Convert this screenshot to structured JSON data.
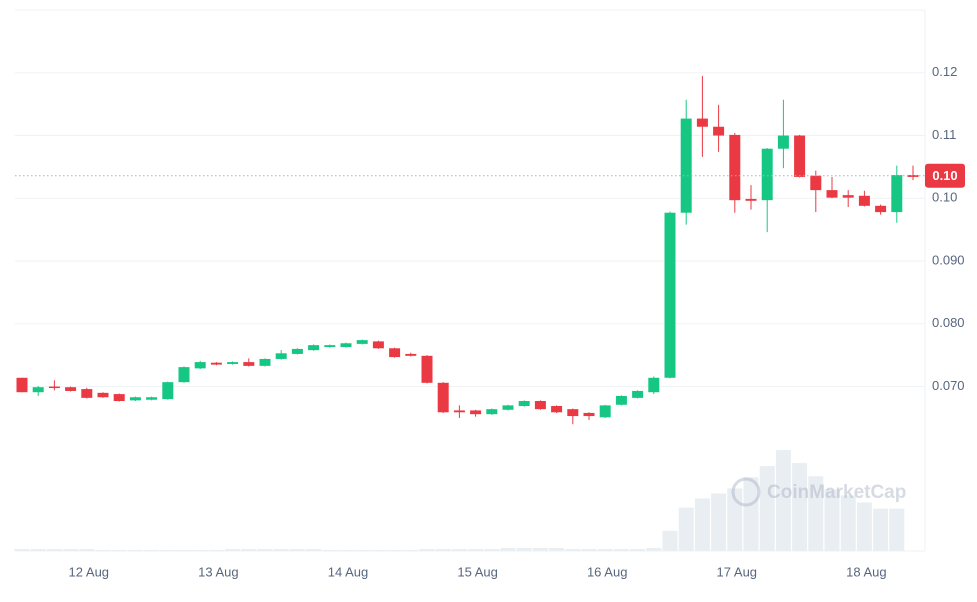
{
  "chart_data": {
    "type": "candlestick",
    "watermark": "CoinMarketCap",
    "categories": [
      null,
      null,
      null,
      null,
      "12 Aug",
      null,
      null,
      null,
      null,
      null,
      null,
      null,
      "13 Aug",
      null,
      null,
      null,
      null,
      null,
      null,
      null,
      "14 Aug",
      null,
      null,
      null,
      null,
      null,
      null,
      null,
      "15 Aug",
      null,
      null,
      null,
      null,
      null,
      null,
      null,
      "16 Aug",
      null,
      null,
      null,
      null,
      null,
      null,
      null,
      "17 Aug",
      null,
      null,
      null,
      null,
      null,
      null,
      null,
      "18 Aug",
      null,
      null,
      null
    ],
    "open": [
      0.0714,
      0.0691,
      0.07,
      0.0699,
      0.0696,
      0.069,
      0.0688,
      0.0678,
      0.0679,
      0.068,
      0.0707,
      0.0729,
      0.0738,
      0.0736,
      0.0739,
      0.0733,
      0.0744,
      0.0752,
      0.0758,
      0.0763,
      0.0763,
      0.0768,
      0.0772,
      0.0761,
      0.0752,
      0.0749,
      0.0706,
      0.0662,
      0.0662,
      0.0656,
      0.0663,
      0.0669,
      0.0677,
      0.0669,
      0.0664,
      0.0658,
      0.0651,
      0.0671,
      0.0682,
      0.0691,
      0.0714,
      0.0977,
      0.1127,
      0.1114,
      0.1101,
      0.0999,
      0.0997,
      0.1079,
      0.11,
      0.1036,
      0.1013,
      0.1005,
      0.1004,
      0.0988,
      0.0978,
      0.1037
    ],
    "high": [
      0.0714,
      0.0701,
      0.071,
      0.07,
      0.0698,
      0.0691,
      0.0689,
      0.0684,
      0.0684,
      0.0708,
      0.0732,
      0.0741,
      0.0739,
      0.074,
      0.0745,
      0.0745,
      0.0758,
      0.0761,
      0.0767,
      0.0767,
      0.077,
      0.0775,
      0.0773,
      0.0762,
      0.0754,
      0.075,
      0.0707,
      0.067,
      0.0663,
      0.0665,
      0.0671,
      0.0678,
      0.0678,
      0.067,
      0.0665,
      0.0659,
      0.0671,
      0.0686,
      0.0694,
      0.0716,
      0.0979,
      0.1157,
      0.1195,
      0.1149,
      0.1104,
      0.1021,
      0.108,
      0.1157,
      0.1101,
      0.1044,
      0.1034,
      0.1013,
      0.1012,
      0.099,
      0.1052,
      0.1052
    ],
    "low": [
      0.0691,
      0.0685,
      0.0694,
      0.0692,
      0.0681,
      0.0682,
      0.0676,
      0.0677,
      0.0678,
      0.0679,
      0.0706,
      0.0728,
      0.0734,
      0.0735,
      0.0732,
      0.0732,
      0.0743,
      0.0751,
      0.0757,
      0.0762,
      0.0762,
      0.0767,
      0.076,
      0.0746,
      0.0748,
      0.0705,
      0.0658,
      0.065,
      0.0652,
      0.0655,
      0.0662,
      0.0668,
      0.0663,
      0.0658,
      0.064,
      0.0647,
      0.065,
      0.067,
      0.0681,
      0.0688,
      0.0713,
      0.0958,
      0.1066,
      0.1074,
      0.0977,
      0.0982,
      0.0946,
      0.1048,
      0.1033,
      0.0978,
      0.1,
      0.0986,
      0.0987,
      0.0974,
      0.0961,
      0.1029
    ],
    "close": [
      0.0691,
      0.0699,
      0.0699,
      0.0693,
      0.0682,
      0.0683,
      0.0677,
      0.0683,
      0.0683,
      0.0707,
      0.0731,
      0.0739,
      0.0735,
      0.0739,
      0.0733,
      0.0744,
      0.0753,
      0.076,
      0.0766,
      0.0766,
      0.0769,
      0.0774,
      0.0761,
      0.0747,
      0.0749,
      0.0706,
      0.0659,
      0.0659,
      0.0656,
      0.0664,
      0.067,
      0.0677,
      0.0664,
      0.0659,
      0.0653,
      0.0653,
      0.067,
      0.0685,
      0.0693,
      0.0714,
      0.0977,
      0.1127,
      0.1114,
      0.11,
      0.0997,
      0.0996,
      0.1079,
      0.11,
      0.1034,
      0.1013,
      0.1001,
      0.1001,
      0.0988,
      0.0978,
      0.1037,
      0.1034
    ],
    "volume": [
      2,
      2,
      2,
      2,
      2,
      1,
      1,
      1,
      1,
      1,
      1,
      1,
      1,
      2,
      2,
      2,
      2,
      2,
      2,
      1,
      1,
      1,
      1,
      1,
      1,
      2,
      2,
      2,
      2,
      2,
      3,
      3,
      3,
      3,
      2,
      2,
      2,
      2,
      2,
      3,
      20,
      43,
      52,
      57,
      62,
      73,
      84,
      100,
      87,
      74,
      61,
      55,
      48,
      42,
      42,
      0
    ],
    "up_color": "#16c784",
    "down_color": "#ea3943",
    "volume_color": "#e9eef3",
    "ylim": [
      0.0438,
      0.13
    ],
    "yticks": [
      0.12,
      0.11,
      {
        "value": 0.1,
        "label": "0.10"
      },
      {
        "value": 0.09,
        "label": "0.090"
      },
      {
        "value": 0.08,
        "label": "0.080"
      },
      {
        "value": 0.07,
        "label": "0.070"
      }
    ],
    "last_price": {
      "value": 0.1036,
      "label": "0.10"
    },
    "grid": true
  }
}
